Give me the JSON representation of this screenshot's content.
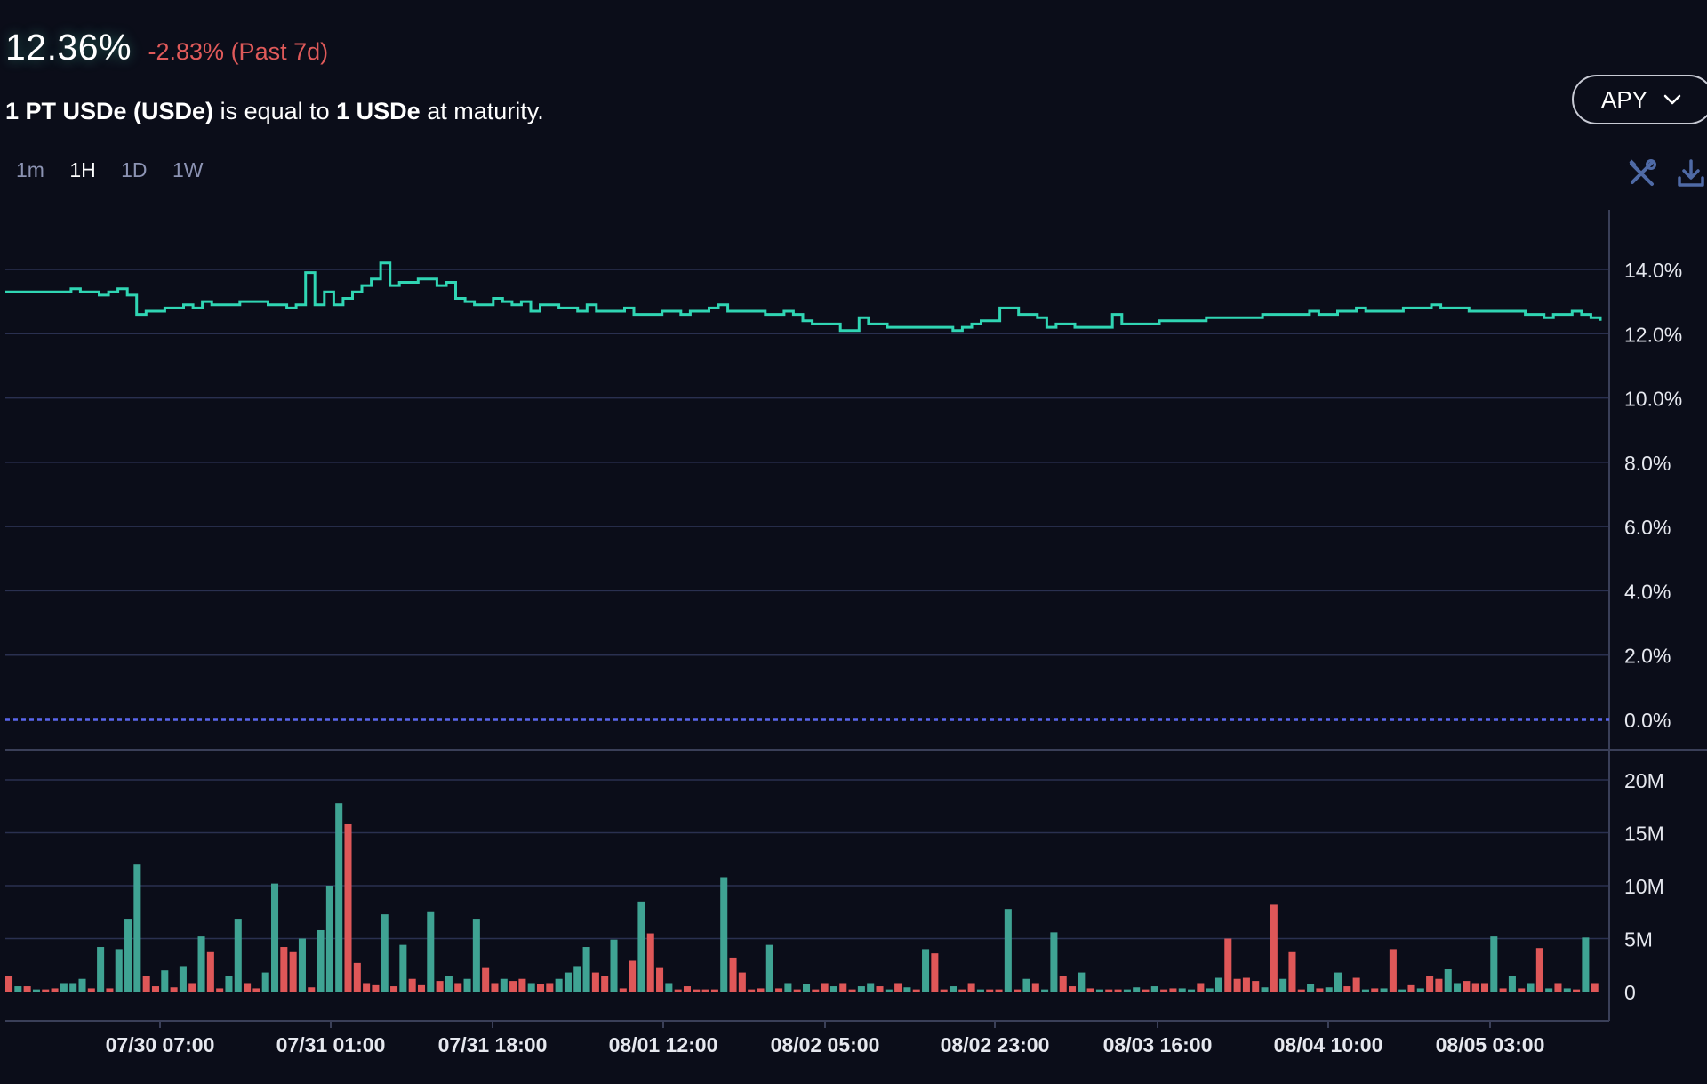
{
  "header": {
    "current_value": "12.36%",
    "change_text": "-2.83% (Past 7d)",
    "description": {
      "pre_bold": "1 PT USDe (USDe)",
      "mid": " is equal to ",
      "post_bold": "1 USDe",
      "tail": " at maturity."
    }
  },
  "metric_selector": {
    "label": "APY"
  },
  "intervals": [
    "1m",
    "1H",
    "1D",
    "1W"
  ],
  "active_interval": "1H",
  "icons": [
    "wrench-screwdriver-icon",
    "download-icon",
    "chevron-down-icon"
  ],
  "colors": {
    "line": "#30d5b3",
    "up_bar": "#3fa393",
    "down_bar": "#df5758",
    "zero_line": "#5a66ee",
    "background": "#0b0d19"
  },
  "chart_data": [
    {
      "type": "line",
      "ylabel": "",
      "ylim": [
        0,
        16
      ],
      "yticks": [
        0,
        2,
        4,
        6,
        8,
        10,
        12,
        14
      ],
      "ytick_labels": [
        "0.0%",
        "2.0%",
        "4.0%",
        "6.0%",
        "8.0%",
        "10.0%",
        "12.0%",
        "14.0%"
      ],
      "xtick_labels": [
        "07/30 07:00",
        "07/31 01:00",
        "07/31 18:00",
        "08/01 12:00",
        "08/02 05:00",
        "08/02 23:00",
        "08/03 16:00",
        "08/04 10:00",
        "08/05 03:00"
      ],
      "series": [
        {
          "values": [
            13.3,
            13.3,
            13.3,
            13.3,
            13.3,
            13.3,
            13.3,
            13.4,
            13.3,
            13.3,
            13.2,
            13.3,
            13.4,
            13.2,
            12.6,
            12.7,
            12.7,
            12.8,
            12.8,
            12.9,
            12.8,
            13.0,
            12.9,
            12.9,
            12.9,
            13.0,
            13.0,
            13.0,
            12.9,
            12.9,
            12.8,
            12.9,
            13.9,
            12.9,
            13.3,
            12.9,
            13.1,
            13.3,
            13.5,
            13.7,
            14.2,
            13.5,
            13.6,
            13.6,
            13.7,
            13.7,
            13.5,
            13.6,
            13.1,
            13.0,
            12.9,
            12.9,
            13.1,
            13.0,
            12.9,
            13.0,
            12.7,
            12.9,
            12.9,
            12.8,
            12.8,
            12.7,
            12.9,
            12.7,
            12.7,
            12.7,
            12.8,
            12.6,
            12.6,
            12.6,
            12.7,
            12.7,
            12.6,
            12.7,
            12.7,
            12.8,
            12.9,
            12.7,
            12.7,
            12.7,
            12.7,
            12.6,
            12.6,
            12.7,
            12.6,
            12.4,
            12.3,
            12.3,
            12.3,
            12.1,
            12.1,
            12.5,
            12.3,
            12.3,
            12.2,
            12.2,
            12.2,
            12.2,
            12.2,
            12.2,
            12.2,
            12.1,
            12.2,
            12.3,
            12.4,
            12.4,
            12.8,
            12.8,
            12.6,
            12.6,
            12.5,
            12.2,
            12.3,
            12.3,
            12.2,
            12.2,
            12.2,
            12.2,
            12.6,
            12.3,
            12.3,
            12.3,
            12.3,
            12.4,
            12.4,
            12.4,
            12.4,
            12.4,
            12.5,
            12.5,
            12.5,
            12.5,
            12.5,
            12.5,
            12.6,
            12.6,
            12.6,
            12.6,
            12.6,
            12.7,
            12.6,
            12.6,
            12.7,
            12.7,
            12.8,
            12.7,
            12.7,
            12.7,
            12.7,
            12.8,
            12.8,
            12.8,
            12.9,
            12.8,
            12.8,
            12.8,
            12.7,
            12.7,
            12.7,
            12.7,
            12.7,
            12.7,
            12.6,
            12.6,
            12.5,
            12.6,
            12.6,
            12.7,
            12.6,
            12.5,
            12.4
          ]
        }
      ]
    },
    {
      "type": "bar",
      "ylabel": "",
      "ylim": [
        0,
        21
      ],
      "yticks": [
        0,
        5,
        10,
        15,
        20
      ],
      "ytick_labels": [
        "0",
        "5M",
        "10M",
        "15M",
        "20M"
      ],
      "units": "M",
      "values": [
        1.5,
        0.5,
        0.5,
        0.2,
        0.2,
        0.3,
        0.8,
        0.8,
        1.2,
        0.3,
        4.2,
        0.3,
        4,
        6.8,
        12,
        1.5,
        0.5,
        2,
        0.4,
        2.4,
        0.8,
        5.2,
        3.8,
        0.3,
        1.5,
        6.8,
        0.8,
        0.3,
        1.8,
        10.2,
        4.2,
        3.8,
        5,
        0.4,
        5.8,
        10,
        17.8,
        15.8,
        2.7,
        0.8,
        0.6,
        7.3,
        0.5,
        4.4,
        1.2,
        0.6,
        7.5,
        1,
        1.5,
        0.8,
        1.2,
        6.8,
        2.3,
        0.8,
        1.2,
        1,
        1.2,
        0.8,
        0.7,
        0.8,
        1.2,
        1.8,
        2.4,
        4.2,
        1.8,
        1.5,
        4.9,
        0.3,
        2.9,
        8.5,
        5.5,
        2.3,
        0.8,
        0.2,
        0.5,
        0.2,
        0.2,
        0.2,
        10.8,
        3.2,
        1.8,
        0.2,
        0.3,
        4.4,
        0.3,
        0.8,
        0.2,
        0.7,
        0.2,
        0.8,
        0.5,
        0.8,
        0.2,
        0.5,
        0.8,
        0.5,
        0.2,
        0.8,
        0.4,
        0.2,
        4,
        3.6,
        0.2,
        0.5,
        0.2,
        0.8,
        0.2,
        0.2,
        0.2,
        7.8,
        0.2,
        1.2,
        0.8,
        0.2,
        5.6,
        1.5,
        0.5,
        1.8,
        0.3,
        0.2,
        0.2,
        0.2,
        0.2,
        0.4,
        0.2,
        0.5,
        0.2,
        0.3,
        0.3,
        0.2,
        0.8,
        0.3,
        1.3,
        5,
        1.2,
        1.3,
        1,
        0.4,
        8.2,
        1.2,
        3.8,
        0.2,
        0.7,
        0.3,
        0.4,
        1.8,
        0.5,
        1.3,
        0.2,
        0.3,
        0.3,
        4,
        0.2,
        0.6,
        0.3,
        1.5,
        1.2,
        2.1,
        0.8,
        1,
        0.8,
        0.8,
        5.2,
        0.3,
        1.5,
        0.3,
        0.8,
        4.1,
        0.3,
        0.8,
        0.3,
        0.2,
        5.1,
        0.8
      ],
      "colors": [
        "d",
        "u",
        "d",
        "u",
        "d",
        "d",
        "u",
        "u",
        "u",
        "d",
        "u",
        "d",
        "u",
        "u",
        "u",
        "d",
        "d",
        "u",
        "d",
        "u",
        "d",
        "u",
        "d",
        "d",
        "u",
        "u",
        "d",
        "d",
        "u",
        "u",
        "d",
        "d",
        "u",
        "d",
        "u",
        "u",
        "u",
        "d",
        "d",
        "d",
        "d",
        "u",
        "d",
        "u",
        "d",
        "d",
        "u",
        "d",
        "u",
        "d",
        "u",
        "u",
        "d",
        "d",
        "u",
        "d",
        "d",
        "u",
        "d",
        "d",
        "u",
        "u",
        "u",
        "u",
        "d",
        "d",
        "u",
        "d",
        "d",
        "u",
        "d",
        "d",
        "u",
        "d",
        "d",
        "d",
        "d",
        "d",
        "u",
        "d",
        "d",
        "d",
        "d",
        "u",
        "d",
        "u",
        "d",
        "u",
        "d",
        "d",
        "u",
        "d",
        "d",
        "u",
        "u",
        "d",
        "u",
        "d",
        "u",
        "d",
        "u",
        "d",
        "d",
        "u",
        "d",
        "d",
        "u",
        "d",
        "d",
        "u",
        "d",
        "u",
        "d",
        "u",
        "u",
        "d",
        "d",
        "u",
        "d",
        "u",
        "d",
        "d",
        "u",
        "u",
        "d",
        "u",
        "d",
        "d",
        "u",
        "u",
        "d",
        "u",
        "u",
        "d",
        "d",
        "d",
        "d",
        "u",
        "d",
        "u",
        "d",
        "d",
        "u",
        "d",
        "u",
        "u",
        "d",
        "d",
        "u",
        "d",
        "u",
        "d",
        "u",
        "d",
        "u",
        "d",
        "d",
        "u",
        "u",
        "d",
        "d",
        "d",
        "u",
        "d",
        "u",
        "d",
        "u",
        "d",
        "u",
        "d",
        "u",
        "d",
        "u",
        "d"
      ]
    }
  ]
}
